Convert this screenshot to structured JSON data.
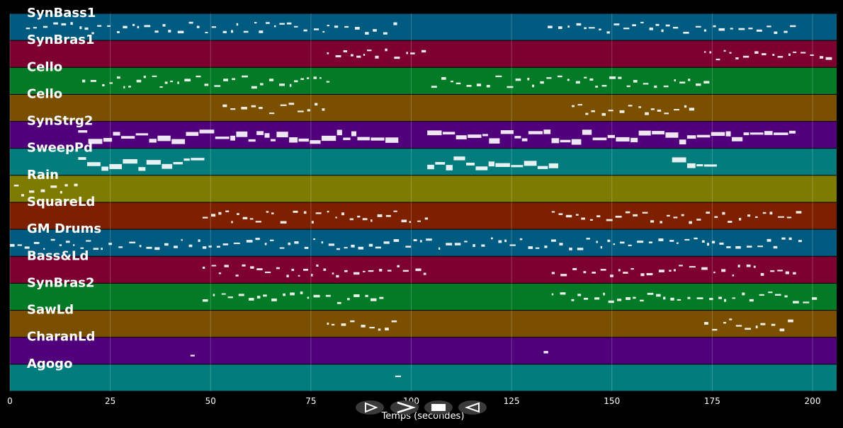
{
  "chart_data": {
    "type": "piano-roll",
    "xlabel": "Temps (secondes)",
    "xlim": [
      0,
      206
    ],
    "xticks": [
      0,
      25,
      50,
      75,
      100,
      125,
      150,
      175,
      200
    ],
    "grid": true,
    "tracks": [
      {
        "name": "SynBass1",
        "color": "#015a80"
      },
      {
        "name": "SynBras1",
        "color": "#7c0030"
      },
      {
        "name": "Cello",
        "color": "#037a25"
      },
      {
        "name": "Cello",
        "color": "#7a5000"
      },
      {
        "name": "SynStrg2",
        "color": "#51007c"
      },
      {
        "name": "SweepPd",
        "color": "#027c7c"
      },
      {
        "name": "Rain",
        "color": "#7d7c00"
      },
      {
        "name": "SquareLd",
        "color": "#7c2000"
      },
      {
        "name": "GM Drums",
        "color": "#015a80"
      },
      {
        "name": "Bass&Ld",
        "color": "#7c0030"
      },
      {
        "name": "SynBras2",
        "color": "#037a25"
      },
      {
        "name": "SawLd",
        "color": "#7a5000"
      },
      {
        "name": "CharanLd",
        "color": "#51007c"
      },
      {
        "name": "Agogo",
        "color": "#027c7c"
      }
    ]
  },
  "controls": {
    "play_icon": "play-outline-icon",
    "forward_icon": "chevron-right-icon",
    "stop_icon": "stop-icon",
    "back_icon": "rewind-icon"
  },
  "colors": {
    "background": "#000000",
    "note": "#ffffff",
    "grid": "#ffffff"
  }
}
